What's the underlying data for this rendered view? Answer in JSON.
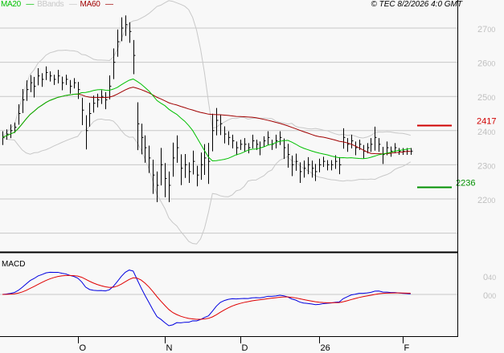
{
  "chart_data": {
    "type": "ohlc",
    "legend": [
      {
        "name": "MA20",
        "color": "#00c000"
      },
      {
        "name": "BBands",
        "color": "#c8c8c8"
      },
      {
        "name": "MA60",
        "color": "#a00000"
      }
    ],
    "copyright": "© TEC 8/2/2026 4:0 GMT",
    "price_axis": {
      "ylim": [
        21.2,
        27.8
      ],
      "ticks": [
        "27.00",
        "26.00",
        "25.00",
        "24.00",
        "23.00",
        "22.00"
      ],
      "grid": true
    },
    "macd_axis": {
      "label": "MACD",
      "ylim": [
        -0.9,
        0.9
      ],
      "ticks": [
        "0.40",
        "0.00"
      ],
      "colors": {
        "macd": "#0000e0",
        "signal": "#e00000"
      }
    },
    "x_ticks": [
      {
        "label": "O",
        "bar": 19
      },
      {
        "label": "N",
        "bar": 41
      },
      {
        "label": "D",
        "bar": 60
      },
      {
        "label": "26",
        "bar": 80
      },
      {
        "label": "F",
        "bar": 101
      }
    ],
    "levels": [
      {
        "name": "resistance",
        "value": 24.17,
        "label": "2417",
        "color": "#d00000"
      },
      {
        "name": "support",
        "value": 22.36,
        "label": "2236",
        "color": "#009000"
      }
    ],
    "close": [
      23.8,
      23.9,
      24.0,
      24.1,
      24.5,
      24.9,
      25.2,
      25.4,
      25.3,
      25.6,
      25.5,
      25.7,
      25.6,
      25.5,
      25.6,
      25.4,
      25.5,
      25.3,
      25.4,
      25.2,
      24.6,
      24.0,
      24.5,
      24.8,
      24.9,
      25.0,
      24.9,
      25.3,
      26.0,
      26.6,
      27.0,
      27.1,
      26.9,
      26.2,
      24.2,
      23.8,
      23.5,
      23.2,
      22.7,
      22.4,
      23.0,
      22.6,
      22.4,
      23.2,
      23.5,
      22.9,
      23.0,
      22.8,
      23.1,
      22.7,
      23.0,
      23.2,
      23.1,
      24.0,
      24.3,
      24.2,
      23.9,
      23.8,
      23.7,
      23.5,
      23.6,
      23.6,
      23.5,
      23.7,
      23.6,
      23.5,
      23.7,
      23.8,
      23.6,
      23.7,
      23.8,
      23.5,
      23.3,
      23.0,
      23.1,
      22.8,
      22.9,
      23.0,
      22.9,
      22.8,
      23.0,
      23.1,
      23.0,
      23.0,
      23.1,
      23.0,
      23.8,
      23.6,
      23.7,
      23.5,
      23.6,
      23.4,
      23.5,
      23.6,
      23.8,
      23.6,
      23.3,
      23.5,
      23.4,
      23.5,
      23.4,
      23.4,
      23.4,
      23.4
    ],
    "range": [
      0.4,
      0.3,
      0.4,
      0.3,
      0.6,
      0.7,
      0.6,
      0.5,
      0.6,
      0.5,
      0.4,
      0.4,
      0.3,
      0.3,
      0.4,
      0.4,
      0.3,
      0.4,
      0.3,
      0.5,
      0.8,
      1.0,
      0.7,
      0.5,
      0.4,
      0.4,
      0.5,
      0.7,
      0.9,
      0.8,
      0.7,
      0.6,
      0.6,
      1.0,
      1.4,
      0.9,
      0.8,
      0.8,
      1.0,
      0.9,
      1.1,
      1.0,
      0.9,
      1.0,
      0.8,
      0.9,
      0.7,
      0.6,
      0.7,
      0.6,
      0.8,
      0.9,
      1.2,
      1.1,
      0.8,
      0.6,
      0.5,
      0.4,
      0.4,
      0.4,
      0.3,
      0.4,
      0.3,
      0.4,
      0.3,
      0.4,
      0.3,
      0.4,
      0.3,
      0.4,
      0.4,
      0.6,
      0.7,
      0.6,
      0.5,
      0.6,
      0.5,
      0.5,
      0.5,
      0.5,
      0.4,
      0.3,
      0.3,
      0.3,
      0.4,
      0.5,
      0.6,
      0.4,
      0.4,
      0.4,
      0.3,
      0.4,
      0.3,
      0.4,
      0.7,
      0.4,
      0.5,
      0.4,
      0.3,
      0.3,
      0.2,
      0.2,
      0.2,
      0.2
    ]
  }
}
